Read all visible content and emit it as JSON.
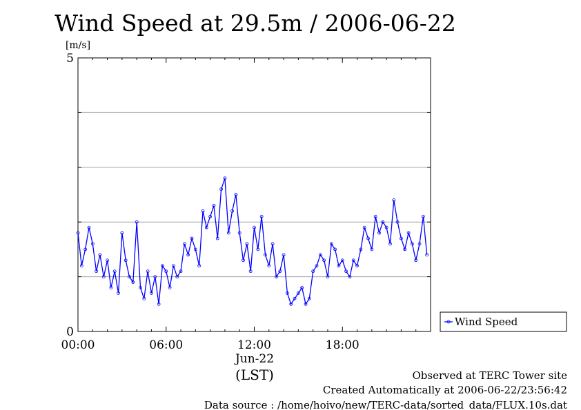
{
  "chart_data": {
    "type": "scatter",
    "title": "Wind Speed at 29.5m / 2006-06-22",
    "ylabel": "[m/s]",
    "xlabel": "(LST)",
    "date_label": "Jun-22",
    "ylim": [
      0,
      5
    ],
    "xlim_hours": [
      0,
      24
    ],
    "y_tick_labels": [
      "0",
      "5"
    ],
    "y_gridlines": [
      1,
      2,
      3,
      4
    ],
    "x_tick_labels": [
      "00:00",
      "06:00",
      "12:00",
      "18:00"
    ],
    "x_tick_hours": [
      0,
      6,
      12,
      18
    ],
    "grid": true,
    "legend_position": "right",
    "series": [
      {
        "name": "Wind Speed",
        "color": "#0000ff",
        "marker": "open-circle",
        "x_hours": [
          0.0,
          0.25,
          0.5,
          0.75,
          1.0,
          1.25,
          1.5,
          1.75,
          2.0,
          2.25,
          2.5,
          2.75,
          3.0,
          3.25,
          3.5,
          3.75,
          4.0,
          4.25,
          4.5,
          4.75,
          5.0,
          5.25,
          5.5,
          5.75,
          6.0,
          6.25,
          6.5,
          6.75,
          7.0,
          7.25,
          7.5,
          7.75,
          8.0,
          8.25,
          8.5,
          8.75,
          9.0,
          9.25,
          9.5,
          9.75,
          10.0,
          10.25,
          10.5,
          10.75,
          11.0,
          11.25,
          11.5,
          11.75,
          12.0,
          12.25,
          12.5,
          12.75,
          13.0,
          13.25,
          13.5,
          13.75,
          14.0,
          14.25,
          14.5,
          14.75,
          15.0,
          15.25,
          15.5,
          15.75,
          16.0,
          16.25,
          16.5,
          16.75,
          17.0,
          17.25,
          17.5,
          17.75,
          18.0,
          18.25,
          18.5,
          18.75,
          19.0,
          19.25,
          19.5,
          19.75,
          20.0,
          20.25,
          20.5,
          20.75,
          21.0,
          21.25,
          21.5,
          21.75,
          22.0,
          22.25,
          22.5,
          22.75,
          23.0,
          23.25,
          23.5,
          23.75
        ],
        "y": [
          1.8,
          1.2,
          1.5,
          1.9,
          1.6,
          1.1,
          1.4,
          1.0,
          1.3,
          0.8,
          1.1,
          0.7,
          1.8,
          1.3,
          1.0,
          0.9,
          2.0,
          0.8,
          0.6,
          1.1,
          0.7,
          1.0,
          0.5,
          1.2,
          1.1,
          0.8,
          1.2,
          1.0,
          1.1,
          1.6,
          1.4,
          1.7,
          1.5,
          1.2,
          2.2,
          1.9,
          2.1,
          2.3,
          1.7,
          2.6,
          2.8,
          1.8,
          2.2,
          2.5,
          1.8,
          1.3,
          1.6,
          1.1,
          1.9,
          1.5,
          2.1,
          1.4,
          1.2,
          1.6,
          1.0,
          1.1,
          1.4,
          0.7,
          0.5,
          0.6,
          0.7,
          0.8,
          0.5,
          0.6,
          1.1,
          1.2,
          1.4,
          1.3,
          1.0,
          1.6,
          1.5,
          1.2,
          1.3,
          1.1,
          1.0,
          1.3,
          1.2,
          1.5,
          1.9,
          1.7,
          1.5,
          2.1,
          1.8,
          2.0,
          1.9,
          1.6,
          2.4,
          2.0,
          1.7,
          1.5,
          1.8,
          1.6,
          1.3,
          1.6,
          2.1,
          1.4
        ]
      }
    ]
  },
  "footer": {
    "site_line": "Observed at TERC Tower site",
    "created_line": "Created Automatically at 2006-06-22/23:56:42",
    "source_line": "Data source : /home/hoivo/new/TERC-data/sorted_data/FLUX.10s.dat"
  }
}
